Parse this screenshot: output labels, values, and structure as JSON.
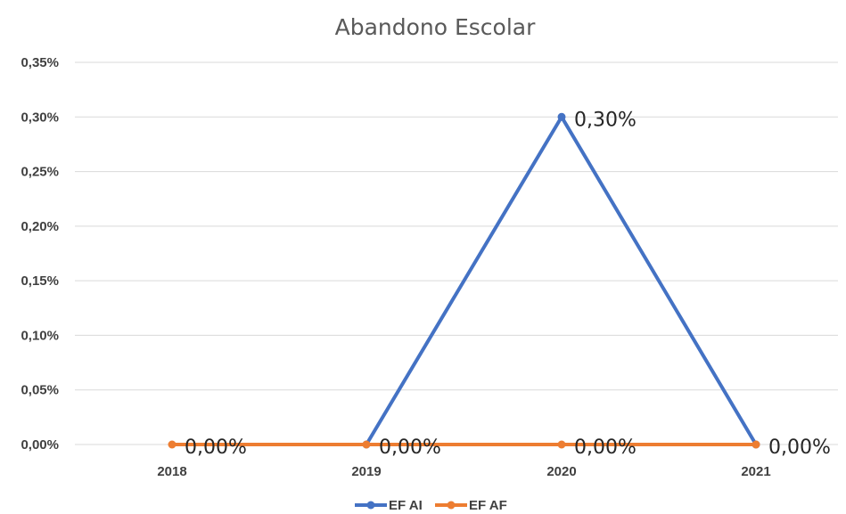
{
  "chart_data": {
    "type": "line",
    "title": "Abandono Escolar",
    "categories": [
      "2018",
      "2019",
      "2020",
      "2021"
    ],
    "ylim": [
      0,
      0.35
    ],
    "yticks": [
      0,
      0.05,
      0.1,
      0.15,
      0.2,
      0.25,
      0.3,
      0.35
    ],
    "ytick_labels": [
      "0,00%",
      "0,05%",
      "0,10%",
      "0,15%",
      "0,20%",
      "0,25%",
      "0,30%",
      "0,35%"
    ],
    "grid": true,
    "legend_position": "bottom",
    "series": [
      {
        "name": "EF AI",
        "color": "#4472c4",
        "values": [
          null,
          0.0,
          0.3,
          0.0
        ],
        "data_labels": [
          "",
          "",
          "0,30%",
          "0,00%"
        ]
      },
      {
        "name": "EF AF",
        "color": "#ed7d31",
        "values": [
          0.0,
          0.0,
          0.0,
          0.0
        ],
        "data_labels": [
          "0,00%",
          "0,00%",
          "0,00%",
          ""
        ]
      }
    ]
  }
}
